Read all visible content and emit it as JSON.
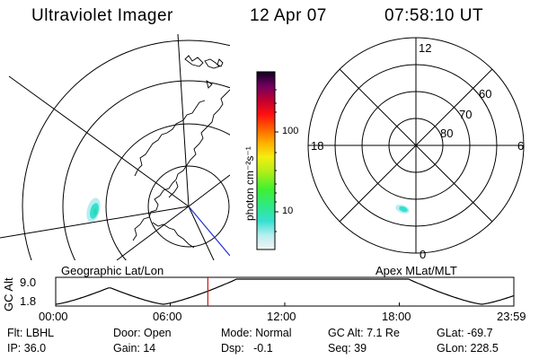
{
  "header": {
    "title": "Ultraviolet Imager",
    "date": "12 Apr 07",
    "time": "07:58:10 UT"
  },
  "left_map": {
    "caption": "Geographic Lat/Lon"
  },
  "colorbar": {
    "unit_label": "photon cm⁻²s⁻¹",
    "ticks": [
      "100",
      "10"
    ]
  },
  "right_map": {
    "caption": "Apex MLat/MLT",
    "mlt_labels": {
      "top": "12",
      "right": "6",
      "bottom": "0",
      "left": "18"
    },
    "lat_labels": [
      "60",
      "70",
      "80"
    ]
  },
  "altitude_plot": {
    "ylabel": "GC Alt",
    "ytick_top": "9.0",
    "ytick_bottom": "1.8",
    "xticks": [
      "00:00",
      "06:00",
      "12:00",
      "18:00",
      "23:59"
    ],
    "current_time_fraction": 0.3321
  },
  "params": {
    "flt": "Flt: LBHL",
    "ip": "IP: 36.0",
    "door": "Door: Open",
    "gain": "Gain: 14",
    "mode": "Mode: Normal",
    "dsp": "Dsp:   -0.1",
    "gc_alt": "GC Alt: 7.1 Re",
    "seq": "Seq: 39",
    "glat": "GLat: -69.7",
    "glon": "GLon: 228.5"
  }
}
